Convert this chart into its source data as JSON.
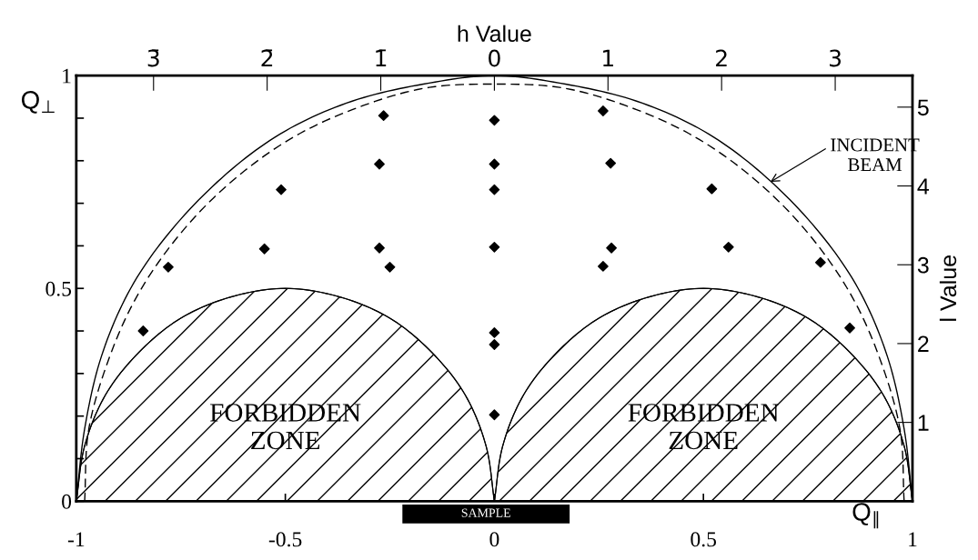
{
  "chart_data": {
    "type": "scatter",
    "xlabel": "Q$_{∥}$",
    "ylabel": "Q$_{⊥}$",
    "x2label": "h Value",
    "y2label": "l Value",
    "xlim": [
      -1,
      1
    ],
    "ylim": [
      0,
      1
    ],
    "xticks": [
      -1,
      -0.5,
      0,
      0.5,
      1
    ],
    "yticks": [
      0,
      {
        "value": 0.1,
        "label": null
      },
      {
        "value": 0.2,
        "label": null
      },
      {
        "value": 0.3,
        "label": null
      },
      {
        "value": 0.4,
        "label": null
      },
      0.5,
      {
        "value": 0.6,
        "label": null
      },
      {
        "value": 0.7,
        "label": null
      },
      {
        "value": 0.8,
        "label": null
      },
      {
        "value": 0.9,
        "label": null
      },
      1
    ],
    "x2lim": [
      -3.68,
      3.68
    ],
    "x2ticks": [
      {
        "value": -3,
        "label": "3̄"
      },
      {
        "value": -2,
        "label": "2̄"
      },
      {
        "value": -1,
        "label": "1̄"
      },
      0,
      1,
      2,
      3
    ],
    "y2lim": [
      0,
      5.4
    ],
    "y2ticks": [
      1,
      2,
      3,
      4,
      5
    ],
    "grid": false,
    "marker": "diamond",
    "series": [
      {
        "type": "line",
        "line_style": "solid",
        "marker": "none",
        "color": "#000000",
        "x": [
          1,
          0.98,
          0.94,
          0.87,
          0.77,
          0.64,
          0.5,
          0.34,
          0.17,
          0,
          -0.17,
          -0.34,
          -0.5,
          -0.64,
          -0.77,
          -0.87,
          -0.94,
          -0.98,
          -1
        ],
        "values": [
          0,
          0.17,
          0.34,
          0.5,
          0.64,
          0.77,
          0.87,
          0.94,
          0.98,
          1,
          0.98,
          0.94,
          0.87,
          0.77,
          0.64,
          0.5,
          0.34,
          0.17,
          0
        ]
      },
      {
        "type": "line",
        "line_style": "dashed",
        "marker": "none",
        "color": "#000000",
        "x": [
          0.98,
          0.97,
          0.92,
          0.85,
          0.75,
          0.63,
          0.49,
          0.34,
          0.17,
          0,
          -0.17,
          -0.34,
          -0.49,
          -0.63,
          -0.75,
          -0.85,
          -0.92,
          -0.97,
          -0.98
        ],
        "values": [
          0,
          0.17,
          0.34,
          0.49,
          0.63,
          0.75,
          0.85,
          0.92,
          0.97,
          0.98,
          0.97,
          0.92,
          0.85,
          0.75,
          0.63,
          0.49,
          0.34,
          0.17,
          0
        ]
      },
      {
        "type": "area",
        "marker": "none",
        "color": "#000000",
        "x": [
          0,
          -0.02,
          -0.07,
          -0.15,
          -0.25,
          -0.37,
          -0.5,
          -0.63,
          -0.75,
          -0.85,
          -0.93,
          -0.98,
          -1
        ],
        "values": [
          0,
          0.13,
          0.25,
          0.35,
          0.43,
          0.48,
          0.5,
          0.48,
          0.43,
          0.35,
          0.25,
          0.13,
          0
        ]
      },
      {
        "type": "area",
        "marker": "none",
        "color": "#000000",
        "x": [
          1,
          0.98,
          0.93,
          0.85,
          0.75,
          0.63,
          0.5,
          0.37,
          0.25,
          0.15,
          0.07,
          0.02,
          0
        ],
        "values": [
          0,
          0.13,
          0.25,
          0.35,
          0.43,
          0.48,
          0.5,
          0.48,
          0.43,
          0.35,
          0.25,
          0.13,
          0
        ]
      },
      {
        "color": "#000000",
        "x": [
          -0.265,
          0,
          0.26,
          -0.275,
          0,
          0.278,
          -0.51,
          0,
          0.52,
          -0.275,
          0,
          0.28,
          -0.25,
          0.26,
          0,
          0,
          0,
          -0.78,
          -0.84,
          0.78,
          0.85,
          0.56,
          -0.55
        ],
        "values": [
          0.906,
          0.895,
          0.917,
          0.792,
          0.792,
          0.794,
          0.732,
          0.732,
          0.734,
          0.595,
          0.597,
          0.595,
          0.55,
          0.552,
          0.396,
          0.368,
          0.203,
          0.55,
          0.4,
          0.561,
          0.407,
          0.597,
          0.593
        ]
      }
    ],
    "annotations": [
      {
        "text": "INCIDENT\nBEAM",
        "x": 0.66,
        "y": 0.75
      },
      "FORBIDDEN\nZONE",
      "FORBIDDEN\nZONE",
      "SAMPLE"
    ]
  }
}
